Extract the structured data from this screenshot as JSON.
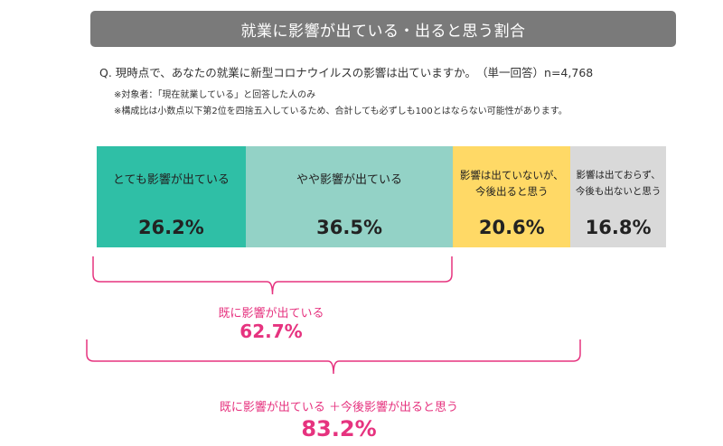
{
  "title": "就業に影響が出ている・出ると思う割合",
  "question": "Q. 現時点で、あなたの就業に新型コロナウイルスの影響は出ていますか。　（単一回答）n=4,768",
  "notes": [
    "※対象者：「現在就業している」と回答した人のみ",
    "※構成比は小数点以下第2位を四捨五入しているため、合計しても必ずしも100とはならない可能性があります。"
  ],
  "chart_data": {
    "type": "bar",
    "orientation": "horizontal-stacked",
    "unit": "%",
    "categories": [
      "とても影響が出ている",
      "やや影響が出ている",
      "影響は出ていないが、今後出ると思う",
      "影響は出ておらず、今後も出ないと思う"
    ],
    "values": [
      26.2,
      36.5,
      20.6,
      16.8
    ],
    "segments": [
      {
        "label_lines": [
          "とても影響が出ている"
        ],
        "value": 26.2,
        "value_text": "26.2%",
        "color": "#2fbfa6"
      },
      {
        "label_lines": [
          "やや影響が出ている"
        ],
        "value": 36.5,
        "value_text": "36.5%",
        "color": "#93d2c6"
      },
      {
        "label_lines": [
          "影響は出ていないが、",
          "今後出ると思う"
        ],
        "value": 20.6,
        "value_text": "20.6%",
        "color": "#ffd966"
      },
      {
        "label_lines": [
          "影響は出ておらず、",
          "今後も出ないと思う"
        ],
        "value": 16.8,
        "value_text": "16.8%",
        "color": "#d9d9d9"
      }
    ],
    "summaries": [
      {
        "label": "既に影響が出ている",
        "value_text": "62.7%",
        "covers": [
          0,
          1
        ]
      },
      {
        "label": "既に影響が出ている ＋今後影響が出ると思う",
        "value_text": "83.2%",
        "covers": [
          0,
          1,
          2
        ]
      }
    ],
    "accent_color": "#e6337f"
  }
}
